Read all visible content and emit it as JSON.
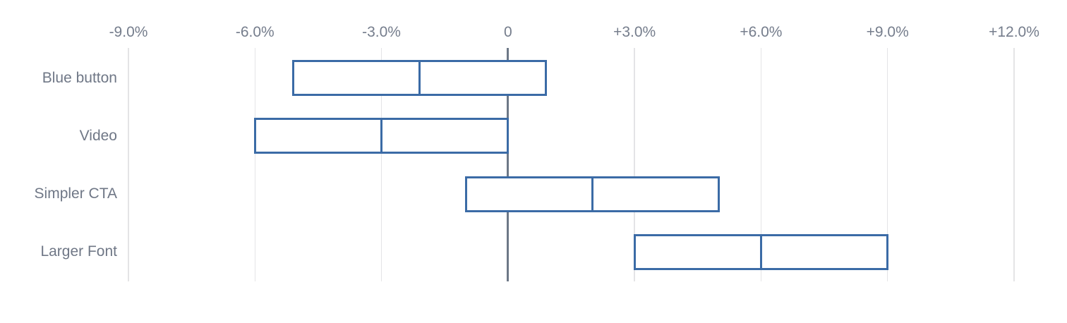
{
  "chart": {
    "background": "#ffffff"
  },
  "chart_data": {
    "type": "bar",
    "subtype": "range-interval",
    "title": "",
    "xlabel": "",
    "ylabel": "",
    "unit": "%",
    "categories": [
      "Blue button",
      "Video",
      "Simpler CTA",
      "Larger Font"
    ],
    "series": [
      {
        "name": "low",
        "values": [
          -5.1,
          -6.0,
          -1.0,
          3.0
        ]
      },
      {
        "name": "mid",
        "values": [
          -2.1,
          -3.0,
          2.0,
          6.0
        ]
      },
      {
        "name": "high",
        "values": [
          0.9,
          0.0,
          5.0,
          9.0
        ]
      }
    ],
    "x_axis": {
      "min": -9,
      "max": 12,
      "ticks": [
        -9,
        -6,
        -3,
        0,
        3,
        6,
        9,
        12
      ],
      "tick_labels": [
        "-9.0%",
        "-6.0%",
        "-3.0%",
        "0",
        "+3.0%",
        "+6.0%",
        "+9.0%",
        "+12.0%"
      ]
    },
    "grid": "vertical",
    "legend": "none",
    "colors": {
      "bar_border": "#3b6ba6",
      "bar_fill": "#ffffff",
      "gridline": "#e4e4e6",
      "zero_line": "#6d7887",
      "tick_label": "#757d8c",
      "category_label": "#6f7786"
    }
  }
}
